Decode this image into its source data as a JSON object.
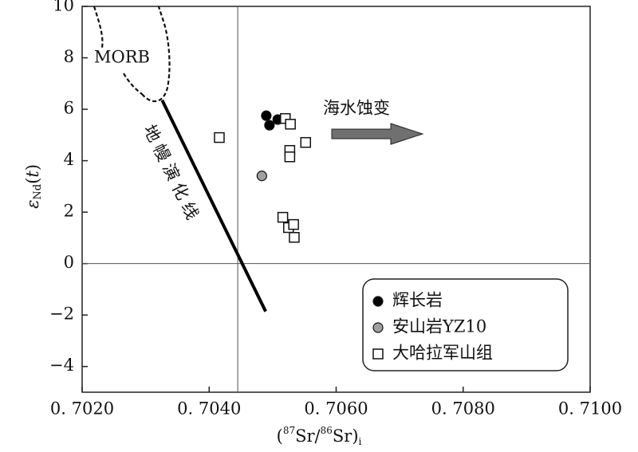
{
  "chart_data": {
    "type": "scatter",
    "xlim": [
      0.702,
      0.71
    ],
    "xticks": [
      {
        "value": 0.702,
        "label": "0. 7020"
      },
      {
        "value": 0.704,
        "label": "0. 7040"
      },
      {
        "value": 0.706,
        "label": "0. 7060"
      },
      {
        "value": 0.708,
        "label": "0. 7080"
      },
      {
        "value": 0.71,
        "label": "0. 7100"
      }
    ],
    "ylim": [
      -5,
      10
    ],
    "yticks": [
      10,
      8,
      6,
      4,
      2,
      0,
      {
        "value": -2,
        "label": "−2"
      },
      {
        "value": -4,
        "label": "−4"
      }
    ],
    "ylabel": [
      "ε",
      "Nd",
      "(",
      "t",
      ")"
    ],
    "xlabel": [
      "(",
      "87",
      "Sr/",
      "86",
      "Sr)",
      "i"
    ],
    "ref_lines": {
      "x": 0.70445,
      "y": 0
    },
    "legend": "lower right",
    "series": [
      {
        "name": "辉长岩",
        "marker": "circle",
        "color": "#000000",
        "x": [
          0.7049,
          0.70495,
          0.70508
        ],
        "y": [
          5.75,
          5.38,
          5.6
        ]
      },
      {
        "name": "安山岩YZ10",
        "marker": "circle",
        "color": "#a0a0a0",
        "x": [
          0.70483
        ],
        "y": [
          3.41
        ]
      },
      {
        "name": "大哈拉军山组",
        "marker": "square",
        "color": "#ffffff",
        "x": [
          0.70416,
          0.7052,
          0.70528,
          0.70527,
          0.70527,
          0.70552,
          0.70516,
          0.70525,
          0.70533,
          0.70534
        ],
        "y": [
          4.9,
          5.64,
          5.42,
          4.4,
          4.15,
          4.71,
          1.8,
          1.4,
          1.52,
          1.02
        ]
      }
    ],
    "mantle_line": {
      "label": "地幔演化线",
      "x": [
        0.70326,
        0.70489
      ],
      "y": [
        6.35,
        -1.86
      ]
    },
    "annotations": {
      "morb": "MORB",
      "seawater": "海水蚀变"
    }
  }
}
